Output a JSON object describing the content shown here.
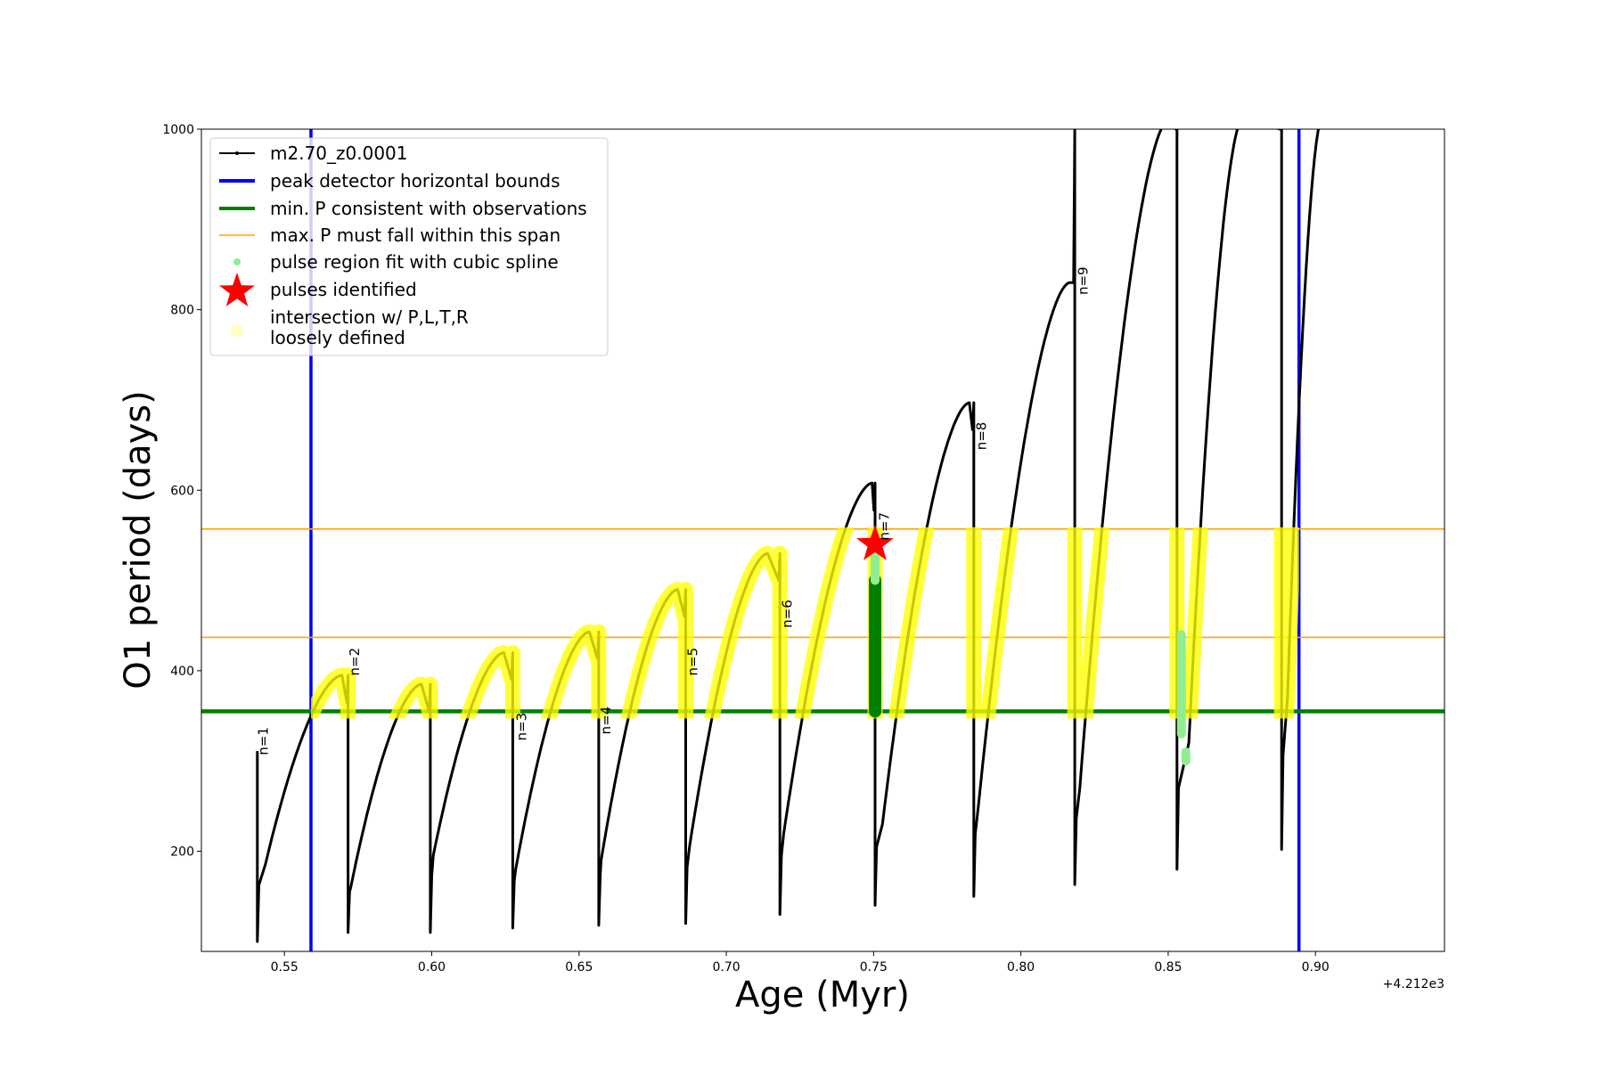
{
  "chart_data": {
    "type": "line",
    "xlabel": "Age (Myr)",
    "ylabel": "O1 period (days)",
    "x_offset_label": "+4.212e3",
    "xlim": [
      0.5218,
      0.9438
    ],
    "ylim": [
      89,
      1000
    ],
    "xticks": [
      "0.55",
      "0.60",
      "0.65",
      "0.70",
      "0.75",
      "0.80",
      "0.85",
      "0.90"
    ],
    "xtick_values": [
      0.55,
      0.6,
      0.65,
      0.7,
      0.75,
      0.8,
      0.85,
      0.9
    ],
    "yticks": [
      "200",
      "400",
      "600",
      "800",
      "1000"
    ],
    "ytick_values": [
      200,
      400,
      600,
      800,
      1000
    ],
    "legend_placement": "upper-left",
    "legend": [
      {
        "label": "m2.70_z0.0001",
        "kind": "line-marker",
        "color": "#000000"
      },
      {
        "label": "peak detector horizontal bounds",
        "kind": "thick-line",
        "color": "#0000ff"
      },
      {
        "label": "min. P consistent with observations",
        "kind": "thick-line",
        "color": "#008000"
      },
      {
        "label": "max. P must fall within this span",
        "kind": "line",
        "color": "#ffa500"
      },
      {
        "label": "pulse region fit with cubic spline",
        "kind": "dot",
        "color": "#90ee90"
      },
      {
        "label": "pulses identified",
        "kind": "star",
        "color": "#ff0000"
      },
      {
        "label": "intersection w/ P,L,T,R",
        "label2": "loosely defined",
        "kind": "big-dot",
        "color": "#ffffc0"
      }
    ],
    "peak_detector_bounds": [
      0.559,
      0.8944
    ],
    "min_P": 355,
    "max_P_span": [
      437,
      557
    ],
    "series_name": "m2.70_z0.0001",
    "cycles": [
      {
        "pulse_x": 0.5408,
        "pulse_top": 311,
        "pulse_bottom": 100,
        "min_x": 0.5435,
        "min_y": 185,
        "peak_x": 0.5695,
        "peak_y": 395
      },
      {
        "pulse_x": 0.5716,
        "pulse_top": 395,
        "pulse_bottom": 110,
        "min_x": 0.5725,
        "min_y": 160,
        "peak_x": 0.5965,
        "peak_y": 385
      },
      {
        "pulse_x": 0.5995,
        "pulse_top": 385,
        "pulse_bottom": 110,
        "min_x": 0.6005,
        "min_y": 195,
        "peak_x": 0.6245,
        "peak_y": 420
      },
      {
        "pulse_x": 0.6275,
        "pulse_top": 420,
        "pulse_bottom": 115,
        "min_x": 0.6285,
        "min_y": 180,
        "peak_x": 0.6535,
        "peak_y": 443
      },
      {
        "pulse_x": 0.6567,
        "pulse_top": 443,
        "pulse_bottom": 118,
        "min_x": 0.6575,
        "min_y": 190,
        "peak_x": 0.6835,
        "peak_y": 490
      },
      {
        "pulse_x": 0.6862,
        "pulse_top": 490,
        "pulse_bottom": 120,
        "min_x": 0.6875,
        "min_y": 205,
        "peak_x": 0.714,
        "peak_y": 530
      },
      {
        "pulse_x": 0.7182,
        "pulse_top": 530,
        "pulse_bottom": 130,
        "min_x": 0.7195,
        "min_y": 220,
        "peak_x": 0.7495,
        "peak_y": 608
      },
      {
        "pulse_x": 0.7505,
        "pulse_top": 608,
        "pulse_bottom": 140,
        "min_x": 0.753,
        "min_y": 230,
        "peak_x": 0.7825,
        "peak_y": 697
      },
      {
        "pulse_x": 0.784,
        "pulse_top": 697,
        "pulse_bottom": 150,
        "min_x": 0.7855,
        "min_y": 248,
        "peak_x": 0.8165,
        "peak_y": 830
      },
      {
        "pulse_x": 0.8183,
        "pulse_top": 1000,
        "pulse_bottom": 163,
        "min_x": 0.82,
        "min_y": 270,
        "peak_x": 0.85,
        "peak_y": 1010
      },
      {
        "pulse_x": 0.853,
        "pulse_top": 1000,
        "pulse_bottom": 180,
        "min_x": 0.857,
        "min_y": 320,
        "peak_x": 0.875,
        "peak_y": 1010
      },
      {
        "pulse_x": 0.8885,
        "pulse_top": 1000,
        "pulse_bottom": 202,
        "min_x": 0.8905,
        "min_y": 370,
        "peak_x": 0.902,
        "peak_y": 1010
      }
    ],
    "pulse_labels": [
      {
        "text": "n=1",
        "x": 0.5428,
        "y": 322
      },
      {
        "text": "n=2",
        "x": 0.5738,
        "y": 410
      },
      {
        "text": "n=3",
        "x": 0.6305,
        "y": 338
      },
      {
        "text": "n=4",
        "x": 0.6592,
        "y": 345
      },
      {
        "text": "n=5",
        "x": 0.6887,
        "y": 410
      },
      {
        "text": "n=6",
        "x": 0.7207,
        "y": 463
      },
      {
        "text": "n=7",
        "x": 0.7537,
        "y": 560
      },
      {
        "text": "n=8",
        "x": 0.7867,
        "y": 660
      },
      {
        "text": "n=9",
        "x": 0.8212,
        "y": 832
      }
    ],
    "spline_fits": [
      {
        "x": 0.7505,
        "y_from": 355,
        "y_to": 500,
        "shade": "dark",
        "color": "#008000"
      },
      {
        "x": 0.7505,
        "y_from": 500,
        "y_to": 532,
        "shade": "light",
        "color": "#90ee90"
      },
      {
        "x": 0.8545,
        "y_from": 330,
        "y_to": 440,
        "shade": "light",
        "color": "#90ee90"
      },
      {
        "x": 0.856,
        "y_from": 300,
        "y_to": 310,
        "shade": "light",
        "color": "#90ee90"
      }
    ],
    "pulses_identified": [
      {
        "x": 0.7505,
        "y": 540
      }
    ]
  }
}
